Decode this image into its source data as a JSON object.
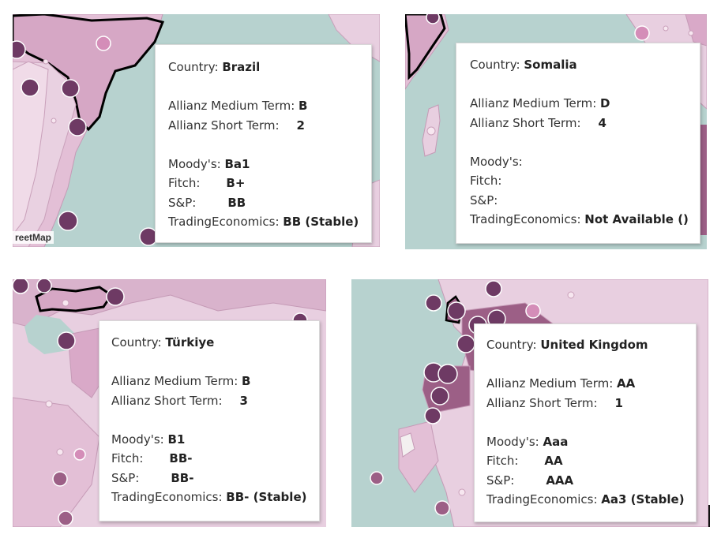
{
  "labels": {
    "country": "Country:",
    "allianz_medium": "Allianz Medium Term:",
    "allianz_short": "Allianz Short Term:",
    "moodys": "Moody's:",
    "fitch": "Fitch:",
    "sp": "S&P:",
    "trading": "TradingEconomics:"
  },
  "attribution": "reetMap",
  "tooltips": [
    {
      "country": "Brazil",
      "allianz_medium": "B",
      "allianz_short": "2",
      "moodys": "Ba1",
      "fitch": "B+",
      "sp": "BB",
      "trading": "BB (Stable)"
    },
    {
      "country": "Somalia",
      "allianz_medium": "D",
      "allianz_short": "4",
      "moodys": "",
      "fitch": "",
      "sp": "",
      "trading": "Not Available ()"
    },
    {
      "country": "Türkiye",
      "allianz_medium": "B",
      "allianz_short": "3",
      "moodys": "B1",
      "fitch": "BB-",
      "sp": "BB-",
      "trading": "BB- (Stable)"
    },
    {
      "country": "United Kingdom",
      "allianz_medium": "AA",
      "allianz_short": "1",
      "moodys": "Aaa",
      "fitch": "AA",
      "sp": "AAA",
      "trading": "Aa3 (Stable)"
    }
  ],
  "colors": {
    "water": "#b7d2cf",
    "land_light": "#e8cfe0",
    "land_mid": "#d9a9c8",
    "land_dark": "#9c5f86",
    "bubble": "#6e3a64",
    "bubble_light": "#d48db8"
  }
}
